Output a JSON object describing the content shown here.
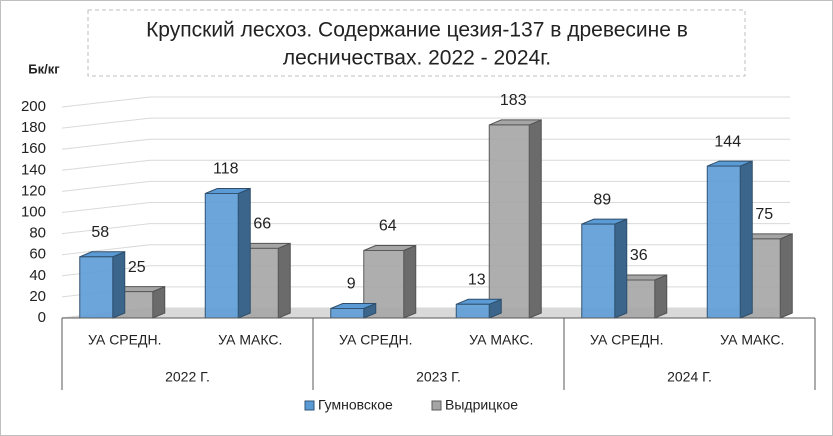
{
  "chart_data": {
    "type": "bar3d",
    "title": [
      "Крупский лесхоз. Содержание цезия-137 в древесине в",
      "лесничествах. 2022 - 2024г."
    ],
    "y_label": "Бк/кг",
    "categories": [
      "УА СРЕДН.",
      "УА МАКС.",
      "УА СРЕДН.",
      "УА МАКС.",
      "УА СРЕДН.",
      "УА МАКС."
    ],
    "groups": [
      "2022 Г.",
      "2023 Г.",
      "2024 Г."
    ],
    "series": [
      {
        "name": "Гумновское",
        "color": "#5b9bd5",
        "values": [
          58,
          118,
          9,
          13,
          89,
          144
        ]
      },
      {
        "name": "Выдрицкое",
        "color": "#a5a5a5",
        "values": [
          25,
          66,
          64,
          183,
          36,
          75
        ]
      }
    ],
    "ylim": [
      0,
      200
    ],
    "yticks": [
      0,
      20,
      40,
      60,
      80,
      100,
      120,
      140,
      160,
      180,
      200
    ],
    "grid": true
  }
}
